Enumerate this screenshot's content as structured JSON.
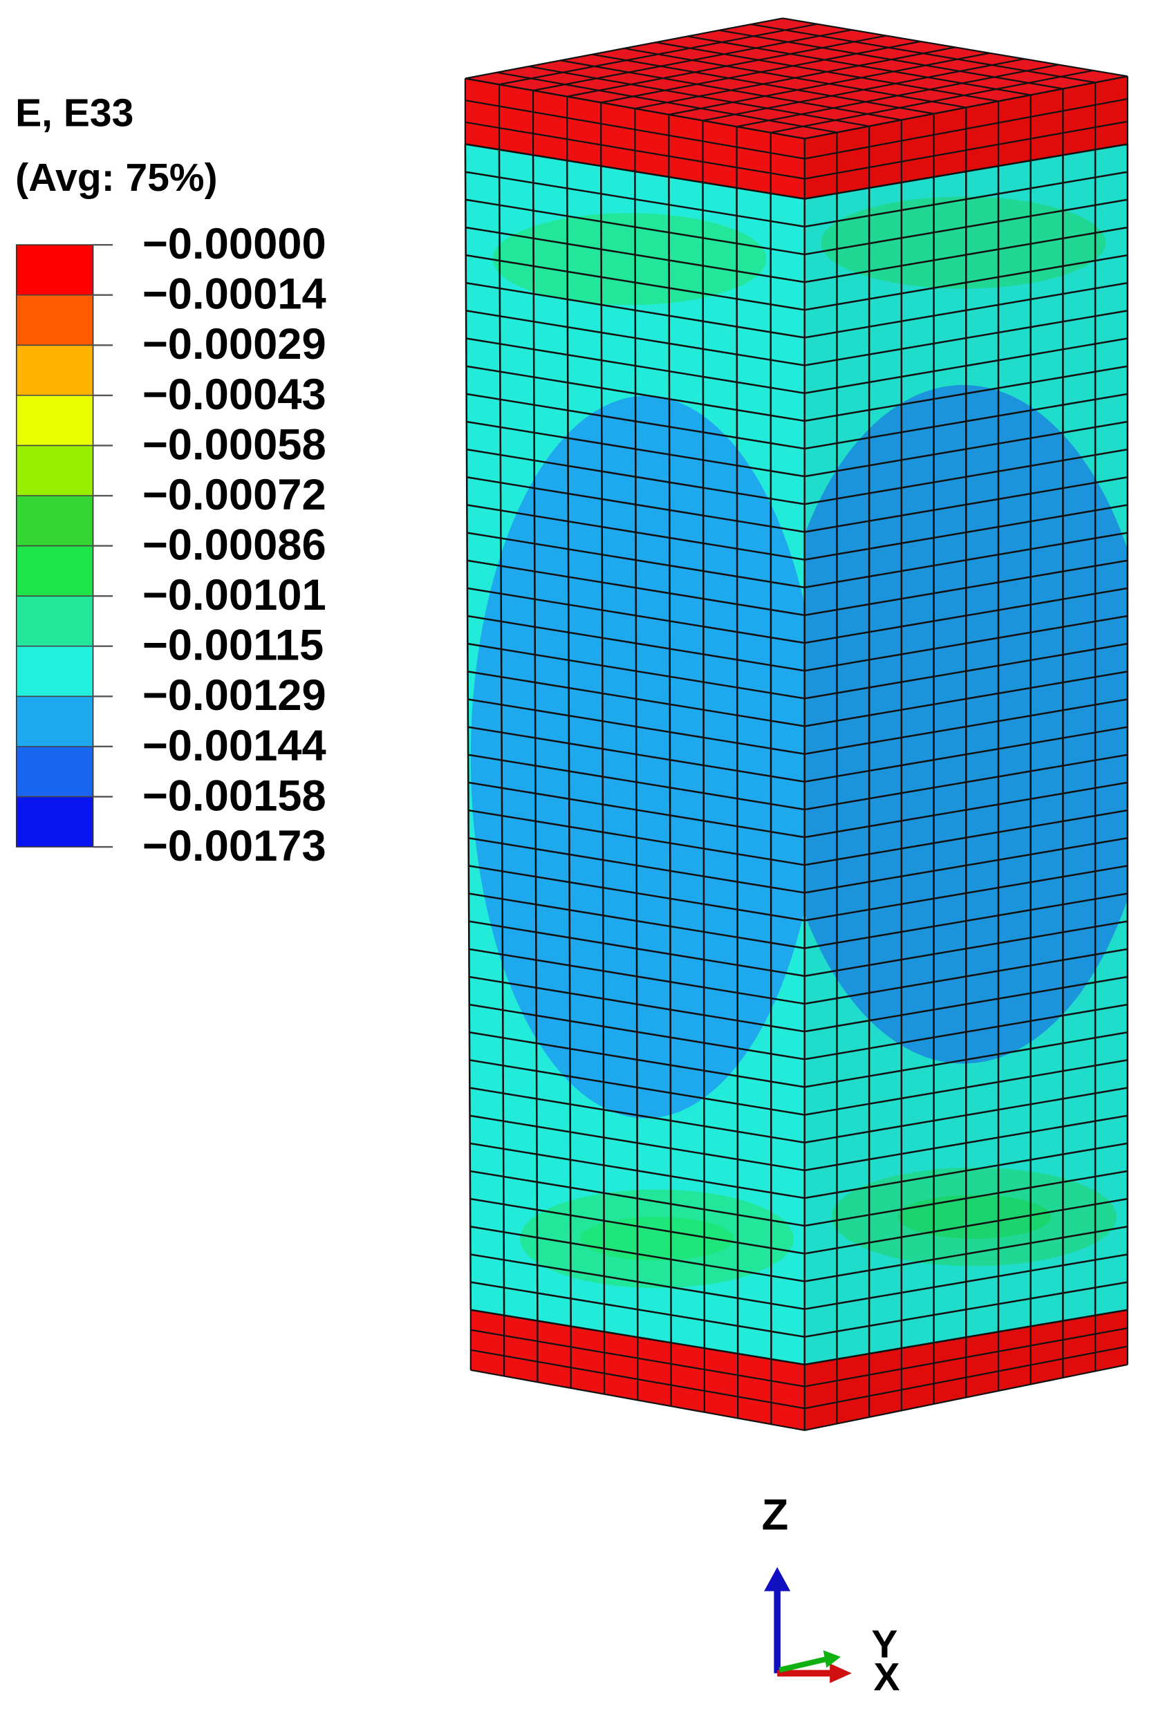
{
  "legend": {
    "title": "E, E33",
    "subtitle": "(Avg: 75%)",
    "labels": [
      "−0.00000",
      "−0.00014",
      "−0.00029",
      "−0.00043",
      "−0.00058",
      "−0.00072",
      "−0.00086",
      "−0.00101",
      "−0.00115",
      "−0.00129",
      "−0.00144",
      "−0.00158",
      "−0.00173"
    ],
    "colors": [
      "#ff0000",
      "#ff5c00",
      "#ffb300",
      "#e8ff00",
      "#9aee00",
      "#33d633",
      "#1ee64a",
      "#22e69a",
      "#22f0dc",
      "#1ea8ee",
      "#1a66ee",
      "#0a14f0"
    ]
  },
  "triad": {
    "z": "Z",
    "y": "Y",
    "x": "X"
  }
}
